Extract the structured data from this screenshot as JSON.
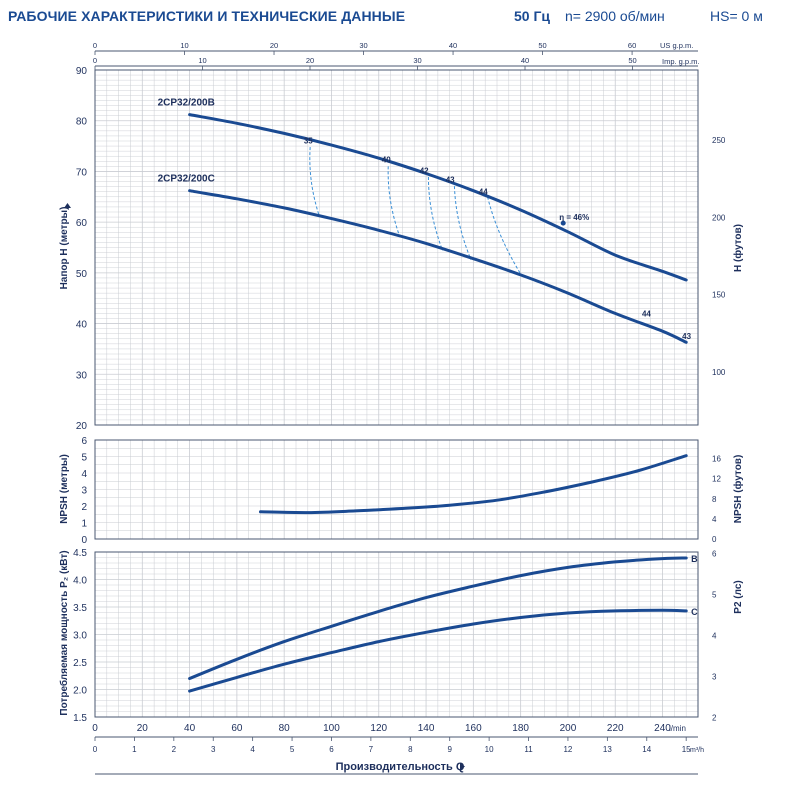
{
  "header": {
    "title": "РАБОЧИЕ ХАРАКТЕРИСТИКИ И ТЕХНИЧЕСКИЕ ДАННЫЕ",
    "frequency": "50 Гц",
    "speed": "n= 2900 об/мин",
    "suction_head": "HS= 0 м"
  },
  "colors": {
    "curve": "#1a4a92",
    "grid": "#c9ccd2",
    "text": "#1d2f5c",
    "efficiency": "#3a8fd6"
  },
  "chart_data": [
    {
      "type": "line",
      "id": "head",
      "ylabel": "Напор H (метры)",
      "ylabel_right": "H (футов)",
      "x_unit": "l/min",
      "xlim": [
        0,
        255
      ],
      "ylim": [
        20,
        90
      ],
      "yticks": [
        20,
        30,
        40,
        50,
        60,
        70,
        80,
        90
      ],
      "right_ticks_ft": [
        100,
        150,
        200,
        250
      ],
      "top_axis_us": {
        "label": "US g.p.m.",
        "ticks": [
          0,
          10,
          20,
          30,
          40,
          50,
          60
        ]
      },
      "top_axis_imp": {
        "label": "Imp. g.p.m.",
        "ticks": [
          0,
          10,
          20,
          30,
          40,
          50
        ]
      },
      "series": [
        {
          "name": "2CP32/200B",
          "x": [
            40,
            60,
            80,
            100,
            120,
            140,
            160,
            180,
            200,
            220,
            240,
            250
          ],
          "y": [
            81.2,
            79.5,
            77.5,
            75.2,
            72.6,
            69.6,
            66.2,
            62.4,
            58.1,
            53.5,
            50.3,
            48.6
          ]
        },
        {
          "name": "2CP32/200C",
          "x": [
            40,
            60,
            80,
            100,
            120,
            140,
            160,
            180,
            200,
            220,
            240,
            250
          ],
          "y": [
            66.2,
            64.6,
            62.8,
            60.7,
            58.4,
            55.8,
            52.8,
            49.6,
            46.0,
            42.0,
            38.5,
            36.3
          ]
        }
      ],
      "efficiency_labels": [
        {
          "text": "35",
          "x": 90,
          "y": 75.5
        },
        {
          "text": "40",
          "x": 123,
          "y": 71.8
        },
        {
          "text": "42",
          "x": 139,
          "y": 69.6
        },
        {
          "text": "43",
          "x": 150,
          "y": 67.8
        },
        {
          "text": "44",
          "x": 164,
          "y": 65.5
        },
        {
          "text": "η = 46%",
          "x": 198,
          "y": 60.4
        },
        {
          "text": "44",
          "x": 233,
          "y": 41.4
        },
        {
          "text": "43",
          "x": 250,
          "y": 37.0
        }
      ],
      "efficiency_lines": [
        {
          "x1": 91,
          "y1": 74.8,
          "x2": 95,
          "y2": 61.0
        },
        {
          "x1": 124,
          "y1": 71.0,
          "x2": 129,
          "y2": 57.0
        },
        {
          "x1": 141,
          "y1": 68.9,
          "x2": 147,
          "y2": 54.4
        },
        {
          "x1": 152,
          "y1": 67.1,
          "x2": 159,
          "y2": 52.6
        },
        {
          "x1": 166,
          "y1": 65.0,
          "x2": 180,
          "y2": 49.8
        }
      ],
      "bep_point": {
        "x": 198,
        "y": 59.8
      }
    },
    {
      "type": "line",
      "id": "npsh",
      "ylabel": "NPSH (метры)",
      "ylabel_right": "NPSH (футов)",
      "ylim": [
        0,
        6
      ],
      "yticks": [
        0,
        1,
        2,
        3,
        4,
        5,
        6
      ],
      "right_ticks_ft": [
        0,
        4,
        8,
        12,
        16
      ],
      "series": [
        {
          "name": "NPSH",
          "x": [
            70,
            90,
            110,
            130,
            150,
            170,
            190,
            210,
            230,
            250
          ],
          "y": [
            1.65,
            1.6,
            1.7,
            1.85,
            2.05,
            2.35,
            2.85,
            3.45,
            4.15,
            5.05
          ]
        }
      ]
    },
    {
      "type": "line",
      "id": "power",
      "ylabel": "Потребляемая мощность P₂ (кВт)",
      "ylabel_right": "P2 (лс)",
      "ylim": [
        1.5,
        4.5
      ],
      "yticks": [
        1.5,
        2.0,
        2.5,
        3.0,
        3.5,
        4.0,
        4.5
      ],
      "right_ticks_hp": [
        2,
        3,
        4,
        5,
        6
      ],
      "x_ticks_lmin": [
        0,
        20,
        40,
        60,
        80,
        100,
        120,
        140,
        160,
        180,
        200,
        220,
        240
      ],
      "x_ticks_m3h": [
        0,
        1,
        2,
        3,
        4,
        5,
        6,
        7,
        8,
        9,
        10,
        11,
        12,
        13,
        14,
        15
      ],
      "series": [
        {
          "name": "B",
          "x": [
            40,
            60,
            80,
            100,
            120,
            140,
            160,
            180,
            200,
            220,
            240,
            250
          ],
          "y": [
            2.2,
            2.55,
            2.87,
            3.15,
            3.42,
            3.67,
            3.88,
            4.07,
            4.22,
            4.32,
            4.38,
            4.39
          ]
        },
        {
          "name": "C",
          "x": [
            40,
            60,
            80,
            100,
            120,
            140,
            160,
            180,
            200,
            220,
            240,
            250
          ],
          "y": [
            1.97,
            2.22,
            2.46,
            2.67,
            2.87,
            3.04,
            3.19,
            3.31,
            3.39,
            3.43,
            3.44,
            3.43
          ]
        }
      ]
    }
  ],
  "axis": {
    "lmin_unit": "l/min",
    "m3h_unit": "m³/h",
    "xlabel": "Производительность Q"
  }
}
